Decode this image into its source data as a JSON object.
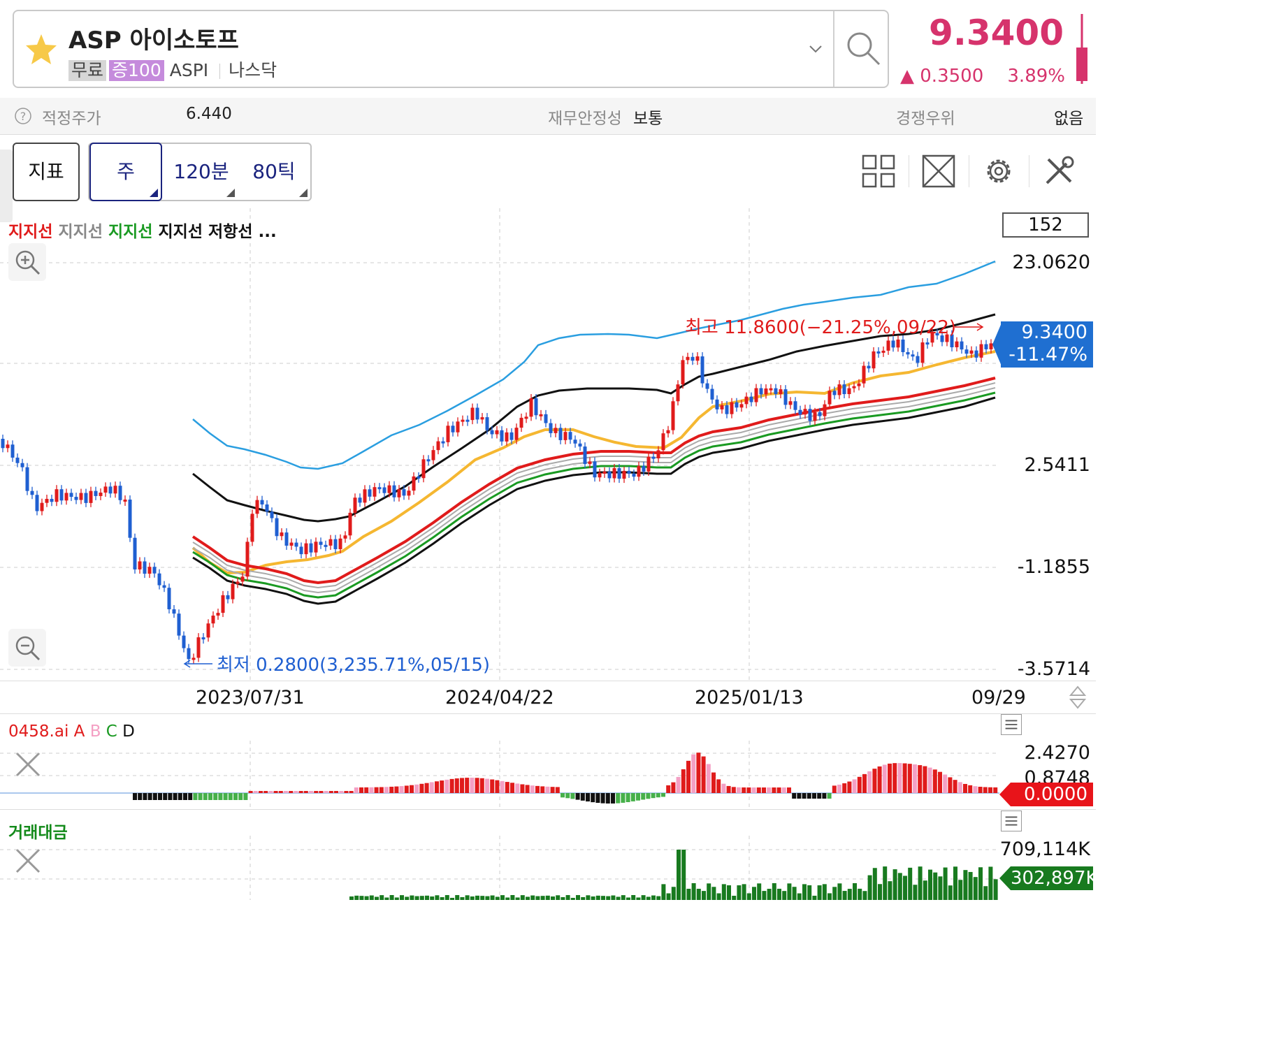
{
  "header": {
    "title": "ASP 아이소토프",
    "tags": [
      "무료",
      "증100",
      "ASPI",
      "나스닥"
    ],
    "price": "9.3400",
    "change": "0.3500",
    "change_pct": "3.89%",
    "price_color": "#d6336c"
  },
  "infobar": {
    "fair_price_label": "적정주가",
    "fair_price_value": "6.440",
    "stability_label": "재무안정성",
    "stability_value": "보통",
    "competition_label": "경쟁우위",
    "competition_value": "없음"
  },
  "toolbar": {
    "indicator_button": "지표",
    "periods": [
      "주",
      "120분",
      "80틱"
    ],
    "icons": [
      "layout-grid-icon",
      "fullscreen-icon",
      "settings-gear-icon",
      "tools-icon"
    ]
  },
  "main_chart": {
    "legend": [
      "지지선",
      "지지선",
      "지지선",
      "지지선",
      "저항선",
      "..."
    ],
    "period_count": "152",
    "y_labels": [
      "23.0620",
      "2.5411",
      "-1.1855",
      "-3.5714"
    ],
    "current_price": "9.3400",
    "current_pct": "-11.47%",
    "high_annotation": "최고 11.8600(−21.25%,09/22)",
    "low_annotation": "최저 0.2800(3,235.71%,05/15)",
    "x_labels": [
      "2023/07/31",
      "2024/04/22",
      "2025/01/13",
      "09/29"
    ]
  },
  "sub_chart1": {
    "title": "0458.ai",
    "legend": [
      "A",
      "B",
      "C",
      "D"
    ],
    "y_labels": [
      "2.4270",
      "0.8748"
    ],
    "current_value": "0.0000"
  },
  "sub_chart2": {
    "title": "거래대금",
    "y_label": "709,114K",
    "current_value": "302,897K"
  },
  "colors": {
    "up": "#e01b1b",
    "down": "#1f5fd1",
    "accent": "#d6336c",
    "ma_yellow": "#f5b731",
    "band_blue": "#2a9ee0"
  }
}
